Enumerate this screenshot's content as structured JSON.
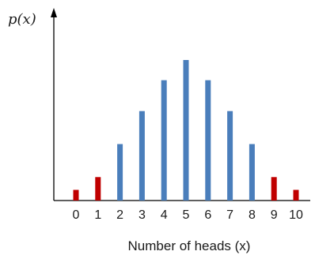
{
  "chart_data": {
    "type": "bar",
    "title": "",
    "ylabel": "p(x)",
    "xlabel": "Number of heads (x)",
    "categories": [
      "0",
      "1",
      "2",
      "3",
      "4",
      "5",
      "6",
      "7",
      "8",
      "9",
      "10"
    ],
    "values": [
      1,
      2.2,
      5.3,
      8.4,
      11.3,
      13.2,
      11.3,
      8.4,
      5.3,
      2.2,
      1
    ],
    "ylim": [
      0,
      13.2
    ],
    "grid": false,
    "bar_colors": [
      "#c00000",
      "#c00000",
      "#4a7ebb",
      "#4a7ebb",
      "#4a7ebb",
      "#4a7ebb",
      "#4a7ebb",
      "#4a7ebb",
      "#4a7ebb",
      "#c00000",
      "#c00000"
    ],
    "colors": {
      "tail": "#c00000",
      "center": "#4a7ebb",
      "axis": "#000000"
    }
  }
}
